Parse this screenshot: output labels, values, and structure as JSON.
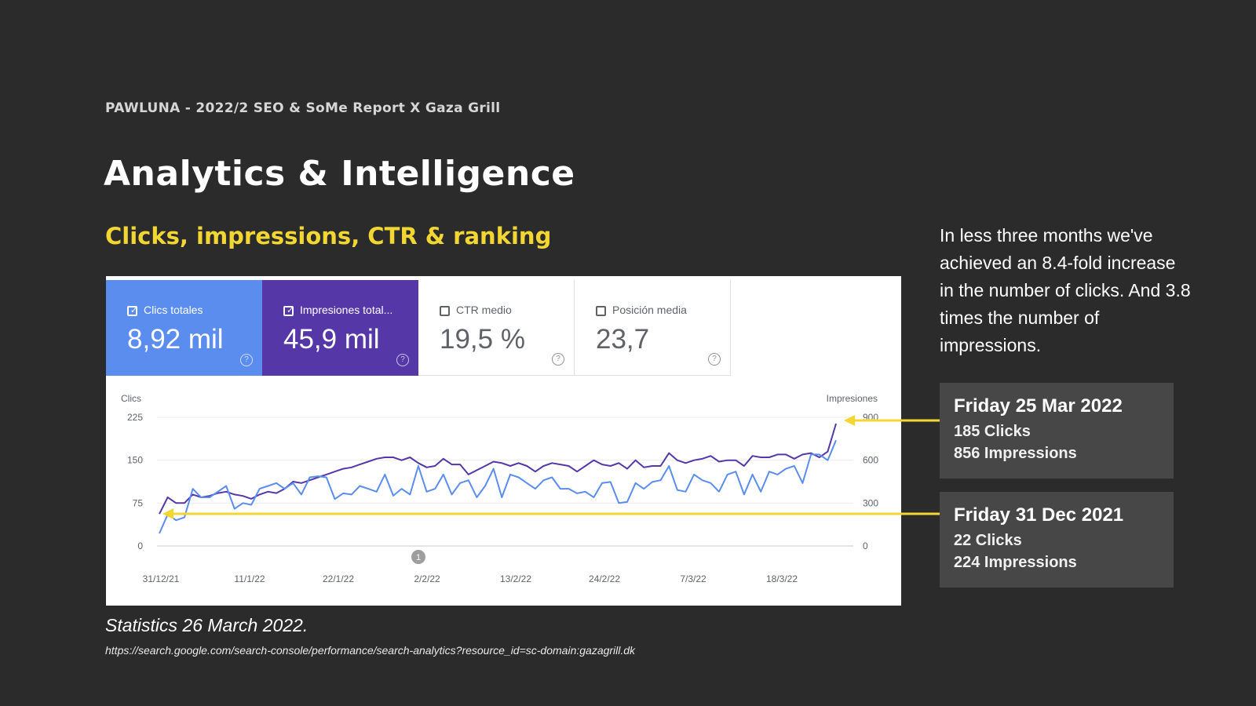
{
  "header": {
    "eyebrow": "PAWLUNA - 2022/2 SEO & SoMe Report X Gaza Grill",
    "title": "Analytics & Intelligence",
    "subtitle": "Clicks, impressions, CTR & ranking"
  },
  "cards": [
    {
      "label": "Clics totales",
      "value": "8,92 mil",
      "checked": true
    },
    {
      "label": "Impresiones total...",
      "value": "45,9 mil",
      "checked": true
    },
    {
      "label": "CTR medio",
      "value": "19,5 %",
      "checked": false
    },
    {
      "label": "Posición media",
      "value": "23,7",
      "checked": false
    }
  ],
  "side": {
    "summary": "In less three months we've achieved an 8.4-fold increase in the number of clicks. And 3.8 times the number of impressions.",
    "latest": {
      "date": "Friday 25 Mar 2022",
      "clicks": "185 Clicks",
      "impressions": "856 Impressions"
    },
    "first": {
      "date": "Friday 31 Dec 2021",
      "clicks": "22 Clicks",
      "impressions": "224 Impressions"
    }
  },
  "footer": {
    "caption": "Statistics 26 March 2022.",
    "url": "https://search.google.com/search-console/performance/search-analytics?resource_id=sc-domain:gazagrill.dk"
  },
  "colors": {
    "clicks": "#5b8def",
    "impressions": "#5537a8",
    "accent": "#f2d733"
  },
  "chart_data": {
    "type": "line",
    "title": "",
    "xlabel": "",
    "ylabel_left": "Clics",
    "ylabel_right": "Impresiones",
    "ylim_left": [
      0,
      225
    ],
    "ylim_right": [
      0,
      900
    ],
    "yticks_left": [
      "0",
      "75",
      "150",
      "225"
    ],
    "yticks_right": [
      "0",
      "300",
      "600",
      "900"
    ],
    "xtick_labels": [
      "31/12/21",
      "11/1/22",
      "22/1/22",
      "2/2/22",
      "13/2/22",
      "24/2/22",
      "7/3/22",
      "18/3/22"
    ],
    "annotation_marker": "1",
    "series": [
      {
        "name": "Clics totales",
        "axis": "left",
        "values": [
          22,
          55,
          45,
          50,
          100,
          85,
          85,
          95,
          105,
          65,
          75,
          72,
          100,
          105,
          110,
          100,
          110,
          90,
          120,
          122,
          120,
          82,
          92,
          90,
          105,
          100,
          95,
          125,
          88,
          100,
          90,
          140,
          95,
          100,
          125,
          90,
          110,
          115,
          85,
          105,
          135,
          85,
          125,
          120,
          110,
          100,
          115,
          120,
          100,
          100,
          92,
          95,
          85,
          110,
          112,
          75,
          77,
          110,
          100,
          112,
          115,
          140,
          98,
          95,
          125,
          115,
          110,
          95,
          125,
          130,
          90,
          125,
          95,
          130,
          125,
          135,
          140,
          110,
          160,
          160,
          150,
          185
        ]
      },
      {
        "name": "Impresiones totales",
        "axis": "right",
        "values": [
          224,
          340,
          300,
          300,
          360,
          340,
          350,
          370,
          380,
          360,
          350,
          330,
          360,
          380,
          370,
          400,
          450,
          440,
          460,
          480,
          500,
          520,
          540,
          550,
          570,
          590,
          610,
          620,
          620,
          600,
          620,
          580,
          550,
          560,
          610,
          570,
          570,
          500,
          530,
          560,
          590,
          580,
          560,
          580,
          560,
          520,
          560,
          580,
          570,
          560,
          520,
          560,
          600,
          570,
          560,
          580,
          540,
          600,
          550,
          560,
          560,
          650,
          600,
          580,
          600,
          610,
          630,
          590,
          600,
          600,
          560,
          630,
          620,
          620,
          640,
          640,
          610,
          640,
          650,
          620,
          660,
          856
        ]
      }
    ]
  }
}
